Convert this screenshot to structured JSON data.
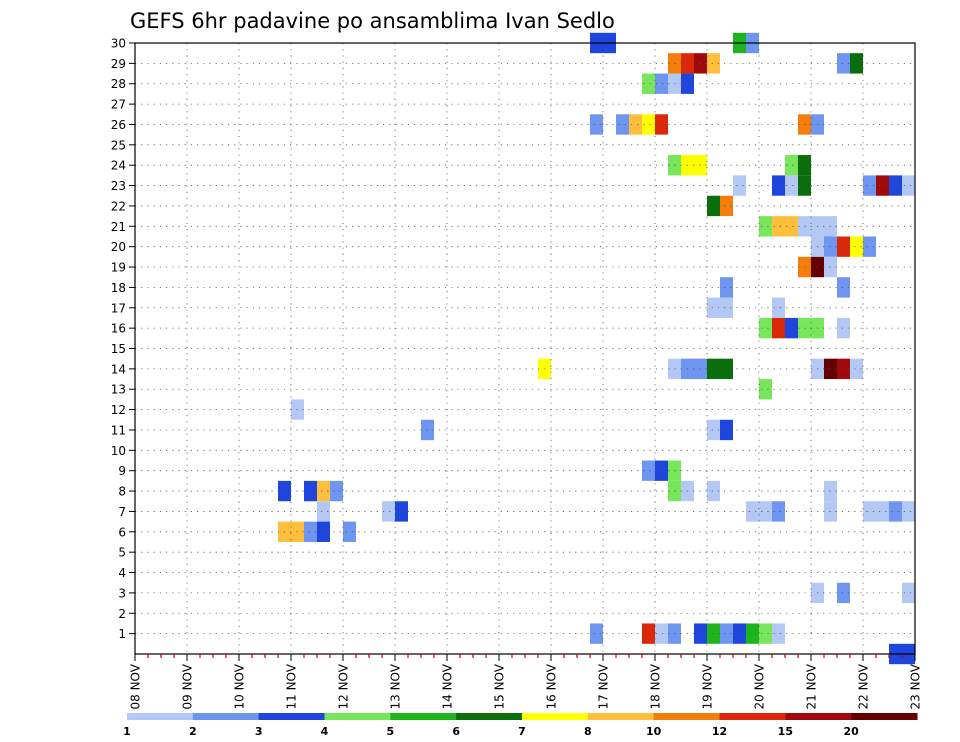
{
  "chart_data": {
    "type": "heatmap",
    "title": "GEFS 6hr padavine po ansamblima Ivan Sedlo",
    "xlabel": "",
    "ylabel": "",
    "x_tick_labels": [
      "08 NOV",
      "09 NOV",
      "10 NOV",
      "11 NOV",
      "12 NOV",
      "13 NOV",
      "14 NOV",
      "15 NOV",
      "16 NOV",
      "17 NOV",
      "18 NOV",
      "19 NOV",
      "20 NOV",
      "21 NOV",
      "22 NOV",
      "23 NOV"
    ],
    "y_tick_labels": [
      "1",
      "2",
      "3",
      "4",
      "5",
      "6",
      "7",
      "8",
      "9",
      "10",
      "11",
      "12",
      "13",
      "14",
      "15",
      "16",
      "17",
      "18",
      "19",
      "20",
      "21",
      "22",
      "23",
      "24",
      "25",
      "26",
      "27",
      "28",
      "29",
      "30"
    ],
    "xlim_days": [
      8,
      23
    ],
    "ylim": [
      0,
      30
    ],
    "grid": true,
    "time_step_hours": 6,
    "colorbar": {
      "colors": [
        "#b4c8f5",
        "#6e96f0",
        "#1e46dc",
        "#78e65a",
        "#1eb41e",
        "#0a6e0a",
        "#ffff00",
        "#ffbe3c",
        "#f57d0a",
        "#dc280a",
        "#a00a0a",
        "#640000"
      ],
      "tick_labels": [
        "1",
        "2",
        "3",
        "4",
        "5",
        "6",
        "7",
        "8",
        "10",
        "12",
        "15",
        "20"
      ]
    },
    "cells_note": "each cell: [member, start_day (Nov), end_day (Nov), level 1-12]",
    "cells": [
      [
        30,
        16.75,
        17.25,
        3
      ],
      [
        30,
        19.5,
        19.75,
        5
      ],
      [
        30,
        19.75,
        20.0,
        2
      ],
      [
        29,
        18.25,
        18.5,
        9
      ],
      [
        29,
        18.5,
        18.75,
        10
      ],
      [
        29,
        18.75,
        19.0,
        11
      ],
      [
        29,
        19.0,
        19.25,
        8
      ],
      [
        29,
        21.5,
        21.75,
        2
      ],
      [
        29,
        21.75,
        22.0,
        6
      ],
      [
        28,
        17.75,
        18.0,
        4
      ],
      [
        28,
        18.0,
        18.25,
        2
      ],
      [
        28,
        18.25,
        18.5,
        1
      ],
      [
        28,
        18.5,
        18.75,
        3
      ],
      [
        26,
        16.75,
        17.0,
        2
      ],
      [
        26,
        17.25,
        17.5,
        2
      ],
      [
        26,
        17.5,
        17.75,
        8
      ],
      [
        26,
        17.75,
        18.0,
        7
      ],
      [
        26,
        18.0,
        18.25,
        10
      ],
      [
        26,
        20.75,
        21.0,
        9
      ],
      [
        26,
        21.0,
        21.25,
        2
      ],
      [
        24,
        18.25,
        18.5,
        4
      ],
      [
        24,
        18.5,
        19.0,
        7
      ],
      [
        24,
        20.5,
        20.75,
        4
      ],
      [
        24,
        20.75,
        21.0,
        6
      ],
      [
        23,
        19.5,
        19.75,
        1
      ],
      [
        23,
        20.25,
        20.5,
        3
      ],
      [
        23,
        20.5,
        20.75,
        1
      ],
      [
        23,
        20.75,
        21.0,
        6
      ],
      [
        23,
        22.0,
        22.25,
        2
      ],
      [
        23,
        22.25,
        22.5,
        11
      ],
      [
        23,
        22.5,
        22.75,
        3
      ],
      [
        23,
        22.75,
        23.0,
        1
      ],
      [
        22,
        19.0,
        19.25,
        6
      ],
      [
        22,
        19.25,
        19.5,
        9
      ],
      [
        21,
        20.0,
        20.25,
        4
      ],
      [
        21,
        20.25,
        20.75,
        8
      ],
      [
        21,
        20.75,
        21.5,
        1
      ],
      [
        20,
        21.0,
        21.25,
        1
      ],
      [
        20,
        21.25,
        21.5,
        2
      ],
      [
        20,
        21.5,
        21.75,
        10
      ],
      [
        20,
        21.75,
        22.0,
        7
      ],
      [
        20,
        22.0,
        22.25,
        2
      ],
      [
        19,
        20.75,
        21.0,
        9
      ],
      [
        19,
        21.0,
        21.25,
        12
      ],
      [
        19,
        21.25,
        21.5,
        1
      ],
      [
        18,
        19.25,
        19.5,
        2
      ],
      [
        18,
        21.5,
        21.75,
        2
      ],
      [
        17,
        19.0,
        19.5,
        1
      ],
      [
        17,
        20.25,
        20.5,
        1
      ],
      [
        16,
        20.0,
        20.25,
        4
      ],
      [
        16,
        20.25,
        20.5,
        10
      ],
      [
        16,
        20.5,
        20.75,
        3
      ],
      [
        16,
        20.75,
        21.25,
        4
      ],
      [
        16,
        21.5,
        21.75,
        1
      ],
      [
        14,
        15.75,
        16.0,
        7
      ],
      [
        14,
        18.25,
        18.5,
        1
      ],
      [
        14,
        18.5,
        19.0,
        2
      ],
      [
        14,
        19.0,
        19.5,
        6
      ],
      [
        14,
        21.0,
        21.25,
        1
      ],
      [
        14,
        21.25,
        21.5,
        12
      ],
      [
        14,
        21.5,
        21.75,
        11
      ],
      [
        14,
        21.75,
        22.0,
        1
      ],
      [
        13,
        20.0,
        20.25,
        4
      ],
      [
        12,
        11.0,
        11.25,
        1
      ],
      [
        11,
        13.5,
        13.75,
        2
      ],
      [
        11,
        19.0,
        19.25,
        1
      ],
      [
        11,
        19.25,
        19.5,
        3
      ],
      [
        9,
        17.75,
        18.0,
        2
      ],
      [
        9,
        18.0,
        18.25,
        3
      ],
      [
        9,
        18.25,
        18.5,
        4
      ],
      [
        8,
        10.75,
        11.0,
        3
      ],
      [
        8,
        11.25,
        11.5,
        3
      ],
      [
        8,
        11.5,
        11.75,
        8
      ],
      [
        8,
        11.75,
        12.0,
        2
      ],
      [
        8,
        18.25,
        18.5,
        4
      ],
      [
        8,
        18.5,
        18.75,
        1
      ],
      [
        8,
        19.0,
        19.25,
        1
      ],
      [
        8,
        21.25,
        21.5,
        1
      ],
      [
        7,
        11.5,
        11.75,
        1
      ],
      [
        7,
        12.75,
        13.0,
        1
      ],
      [
        7,
        13.0,
        13.25,
        3
      ],
      [
        7,
        19.75,
        20.25,
        1
      ],
      [
        7,
        20.25,
        20.5,
        2
      ],
      [
        7,
        21.25,
        21.5,
        1
      ],
      [
        7,
        22.0,
        22.5,
        1
      ],
      [
        7,
        22.5,
        22.75,
        2
      ],
      [
        7,
        22.75,
        23.0,
        1
      ],
      [
        6,
        10.75,
        11.25,
        8
      ],
      [
        6,
        11.25,
        11.5,
        2
      ],
      [
        6,
        11.5,
        11.75,
        3
      ],
      [
        6,
        12.0,
        12.25,
        2
      ],
      [
        3,
        21.0,
        21.25,
        1
      ],
      [
        3,
        21.5,
        21.75,
        2
      ],
      [
        3,
        22.75,
        23.0,
        1
      ],
      [
        1,
        16.75,
        17.0,
        2
      ],
      [
        1,
        17.75,
        18.0,
        10
      ],
      [
        1,
        18.0,
        18.25,
        1
      ],
      [
        1,
        18.25,
        18.5,
        2
      ],
      [
        1,
        18.75,
        19.0,
        3
      ],
      [
        1,
        19.0,
        19.25,
        5
      ],
      [
        1,
        19.25,
        19.5,
        2
      ],
      [
        1,
        19.5,
        19.75,
        3
      ],
      [
        1,
        19.75,
        20.0,
        5
      ],
      [
        1,
        20.0,
        20.25,
        4
      ],
      [
        1,
        20.25,
        20.5,
        1
      ],
      [
        0,
        22.5,
        23.0,
        3
      ]
    ]
  }
}
